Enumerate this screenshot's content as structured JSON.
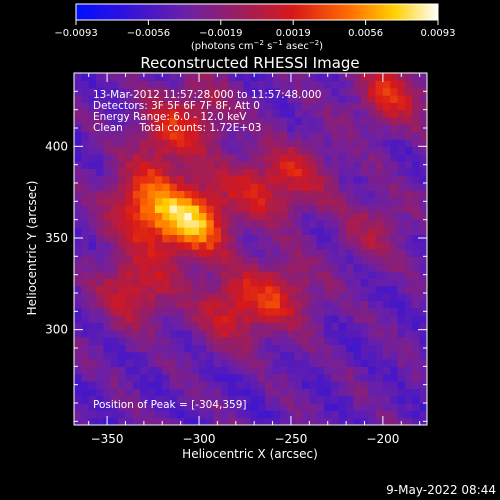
{
  "chart_data": {
    "type": "heatmap",
    "title": "Reconstructed RHESSI Image",
    "colorbar": {
      "min": -0.0093,
      "max": 0.0093,
      "tick_labels": [
        "-0.0093",
        "-0.0056",
        "-0.0019",
        "0.0019",
        "0.0056",
        "0.0093"
      ],
      "unit_label_parts": [
        "(photons cm",
        "-2",
        " s",
        "-1",
        " asec",
        "-2",
        ")"
      ]
    },
    "annotations": [
      "13-Mar-2012 11:57:28.000 to 11:57:48.000",
      "Detectors: 3F 5F 6F 7F 8F, Att 0",
      "Energy Range: 6.0 - 12.0 keV",
      "Clean     Total counts: 1.72E+03"
    ],
    "peak_label": "Position of Peak = [-304,359]",
    "peak": [
      -304,
      359
    ],
    "xlabel": "Heliocentric X (arcsec)",
    "ylabel": "Heliocentric Y (arcsec)",
    "xlim": [
      -368,
      -176
    ],
    "ylim": [
      248,
      440
    ],
    "xticks": [
      -350,
      -300,
      -250,
      -200
    ],
    "yticks": [
      300,
      350,
      400
    ],
    "pixel_size_arcsec": 4,
    "sources": [
      {
        "x": -304,
        "y": 359,
        "level": 0.0093
      },
      {
        "x": -330,
        "y": 368,
        "level": 0.0068
      },
      {
        "x": -335,
        "y": 322,
        "level": 0.005
      },
      {
        "x": -282,
        "y": 312,
        "level": 0.0045
      },
      {
        "x": -255,
        "y": 320,
        "level": 0.004
      },
      {
        "x": -268,
        "y": 378,
        "level": 0.0036
      },
      {
        "x": -245,
        "y": 385,
        "level": 0.003
      },
      {
        "x": -195,
        "y": 430,
        "level": 0.005
      },
      {
        "x": -205,
        "y": 355,
        "level": 0.0022
      },
      {
        "x": -318,
        "y": 405,
        "level": 0.0038
      },
      {
        "x": -300,
        "y": 420,
        "level": 0.0025
      }
    ],
    "background_level": -0.004
  },
  "footer": {
    "timestamp": "9-May-2022 08:44"
  }
}
